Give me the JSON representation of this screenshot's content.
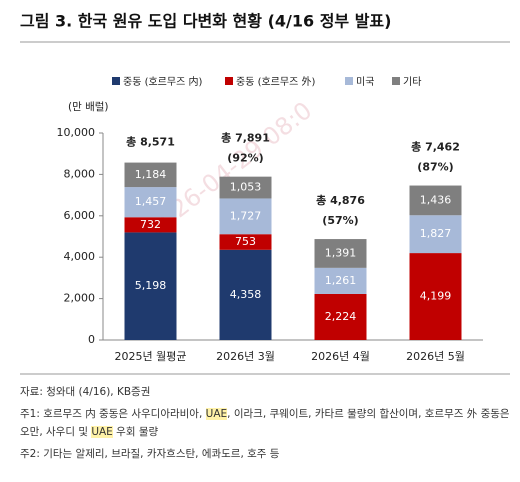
{
  "chart_data": {
    "type": "stacked_bar",
    "title": "그림 3. 한국 원유 도입 다변화 현황 (4/16 정부 발표)",
    "y_label": "(만 배럴)",
    "watermark": "2026-04-29 08:0",
    "categories": [
      "2025년 월평균",
      "2026년 3월",
      "2026년 4월",
      "2026년 5월"
    ],
    "series": [
      {
        "name": "중동 (호르무즈 内)",
        "color": "#1f3a6e",
        "values": [
          5198,
          4358,
          null,
          null
        ],
        "value_labels": [
          "5,198",
          "4,358",
          null,
          null
        ]
      },
      {
        "name": "중동 (호르무즈 外)",
        "color": "#c00000",
        "values": [
          732,
          753,
          2224,
          4199
        ],
        "value_labels": [
          "732",
          "753",
          "2,224",
          "4,199"
        ]
      },
      {
        "name": "미국",
        "color": "#a7b9d8",
        "values": [
          1457,
          1727,
          1261,
          1827
        ],
        "value_labels": [
          "1,457",
          "1,727",
          "1,261",
          "1,827"
        ]
      },
      {
        "name": "기타",
        "color": "#7f7f7f",
        "values": [
          1184,
          1053,
          1391,
          1436
        ],
        "value_labels": [
          "1,184",
          "1,053",
          "1,391",
          "1,436"
        ]
      }
    ],
    "totals": {
      "values": [
        8571,
        7891,
        4876,
        7462
      ],
      "value_labels": [
        "총 8,571",
        "총 7,891",
        "총 4,876",
        "총 7,462"
      ]
    },
    "shares": {
      "values": [
        null,
        92,
        57,
        87
      ],
      "value_labels": [
        null,
        "(92%)",
        "(57%)",
        "(87%)"
      ]
    },
    "ylim": [
      0,
      10000
    ],
    "yticks": [
      0,
      {
        "value": 2000,
        "label": "2,000"
      },
      {
        "value": 4000,
        "label": "4,000"
      },
      {
        "value": 6000,
        "label": "6,000"
      },
      {
        "value": 8000,
        "label": "8,000"
      },
      {
        "value": 10000,
        "label": "10,000"
      }
    ],
    "grid": false,
    "legend_position": "top"
  },
  "notes": {
    "source": "자료: 청와대 (4/16), KB증권",
    "note1": [
      "주1: 호르무즈 内 중동은 사우디아라비아, ",
      "UAE",
      ", 이라크, 쿠웨이트, 카타르 물량의 합산이며, 호르무즈 外 중동은 오만, 사우디 및 ",
      "UAE",
      " 우회 물량"
    ],
    "note2": "주2: 기타는 알제리, 브라질, 카자흐스탄, 에콰도르, 호주 등"
  }
}
